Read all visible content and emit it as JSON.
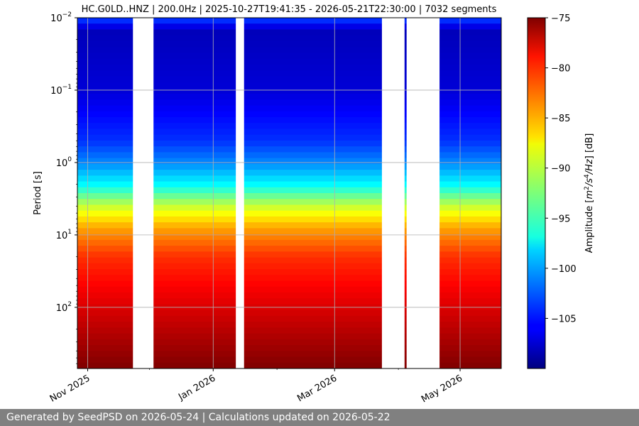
{
  "chart_data": {
    "type": "heatmap",
    "title": "HC.G0LD..HNZ | 200.0Hz | 2025-10-27T19:41:35 - 2026-05-21T22:30:00 | 7032 segments",
    "ylabel": "Period [s]",
    "xlabel": "",
    "x_ticks": [
      "Nov 2025",
      "Jan 2026",
      "Mar 2026",
      "May 2026"
    ],
    "y_ticks": [
      {
        "base": "10",
        "exp": "−2"
      },
      {
        "base": "10",
        "exp": "−1"
      },
      {
        "base": "10",
        "exp": "0"
      },
      {
        "base": "10",
        "exp": "1"
      },
      {
        "base": "10",
        "exp": "2"
      }
    ],
    "y_scale": "log",
    "y_inverted": true,
    "ylim": [
      0.01,
      700
    ],
    "xlim": [
      "2025-10-27",
      "2026-05-21"
    ],
    "grid": true,
    "colormap": "jet",
    "colorbar": {
      "label": "Amplitude [m²/s⁴/Hz] [dB]",
      "range": [
        -110,
        -75
      ],
      "ticks": [
        "−75",
        "−80",
        "−85",
        "−90",
        "−95",
        "−100",
        "−105"
      ]
    },
    "data_gaps": [
      [
        "2025-11-23",
        "2025-12-03"
      ],
      [
        "2026-01-12",
        "2026-01-16"
      ],
      [
        "2026-03-24",
        "2026-04-04"
      ],
      [
        "2026-04-05",
        "2026-04-21"
      ]
    ],
    "amplitude_profile": [
      {
        "period": 0.01,
        "db": -103
      },
      {
        "period": 0.015,
        "db": -108
      },
      {
        "period": 0.1,
        "db": -107
      },
      {
        "period": 0.5,
        "db": -104
      },
      {
        "period": 1,
        "db": -101
      },
      {
        "period": 2,
        "db": -97
      },
      {
        "period": 4,
        "db": -90
      },
      {
        "period": 8,
        "db": -85
      },
      {
        "period": 20,
        "db": -81
      },
      {
        "period": 60,
        "db": -79
      },
      {
        "period": 200,
        "db": -77
      },
      {
        "period": 700,
        "db": -75
      }
    ]
  },
  "footer": {
    "text": "Generated by SeedPSD on 2026-05-24 | Calculations updated on 2026-05-22"
  }
}
